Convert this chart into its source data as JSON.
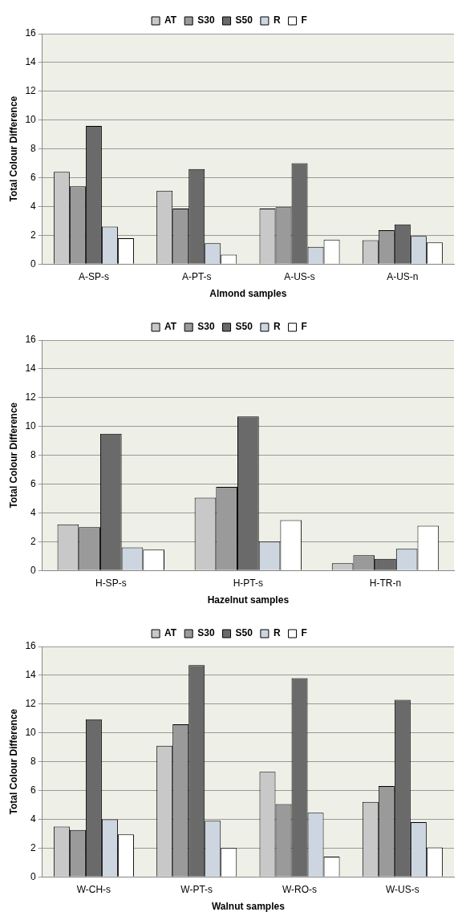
{
  "chart_data": [
    {
      "type": "bar",
      "xlabel": "Almond samples",
      "ylabel": "Total Colour Difference",
      "categories": [
        "A-SP-s",
        "A-PT-s",
        "A-US-s",
        "A-US-n"
      ],
      "ylim": [
        0,
        16
      ],
      "yticks": [
        0,
        2,
        4,
        6,
        8,
        10,
        12,
        14,
        16
      ],
      "grid": "y",
      "legend": "top",
      "series": [
        {
          "name": "AT",
          "color": "#c8c8c8",
          "values": [
            6.4,
            5.1,
            3.85,
            1.65
          ]
        },
        {
          "name": "S30",
          "color": "#9a9a9a",
          "values": [
            5.4,
            3.85,
            3.95,
            2.35
          ]
        },
        {
          "name": "S50",
          "color": "#6a6a6a",
          "values": [
            9.6,
            6.6,
            7.0,
            2.75
          ]
        },
        {
          "name": "R",
          "color": "#cdd6e0",
          "values": [
            2.6,
            1.45,
            1.2,
            1.95
          ]
        },
        {
          "name": "F",
          "color": "#ffffff",
          "values": [
            1.8,
            0.65,
            1.7,
            1.5
          ]
        }
      ]
    },
    {
      "type": "bar",
      "xlabel": "Hazelnut samples",
      "ylabel": "Total Colour Difference",
      "categories": [
        "H-SP-s",
        "H-PT-s",
        "H-TR-n"
      ],
      "ylim": [
        0,
        16
      ],
      "yticks": [
        0,
        2,
        4,
        6,
        8,
        10,
        12,
        14,
        16
      ],
      "grid": "y",
      "legend": "top",
      "series": [
        {
          "name": "AT",
          "color": "#c8c8c8",
          "values": [
            3.2,
            5.05,
            0.5
          ]
        },
        {
          "name": "S30",
          "color": "#9a9a9a",
          "values": [
            3.0,
            5.8,
            1.05
          ]
        },
        {
          "name": "S50",
          "color": "#6a6a6a",
          "values": [
            9.5,
            10.7,
            0.8
          ]
        },
        {
          "name": "R",
          "color": "#cdd6e0",
          "values": [
            1.6,
            2.0,
            1.5
          ]
        },
        {
          "name": "F",
          "color": "#ffffff",
          "values": [
            1.45,
            3.5,
            3.1
          ]
        }
      ]
    },
    {
      "type": "bar",
      "xlabel": "Walnut samples",
      "ylabel": "Total Colour Difference",
      "categories": [
        "W-CH-s",
        "W-PT-s",
        "W-RO-s",
        "W-US-s"
      ],
      "ylim": [
        0,
        16
      ],
      "yticks": [
        0,
        2,
        4,
        6,
        8,
        10,
        12,
        14,
        16
      ],
      "grid": "y",
      "legend": "top",
      "series": [
        {
          "name": "AT",
          "color": "#c8c8c8",
          "values": [
            3.5,
            9.1,
            7.3,
            5.2
          ]
        },
        {
          "name": "S30",
          "color": "#9a9a9a",
          "values": [
            3.25,
            10.6,
            5.05,
            6.3
          ]
        },
        {
          "name": "S50",
          "color": "#6a6a6a",
          "values": [
            10.95,
            14.7,
            13.8,
            12.3
          ]
        },
        {
          "name": "R",
          "color": "#cdd6e0",
          "values": [
            4.0,
            3.9,
            4.45,
            3.8
          ]
        },
        {
          "name": "F",
          "color": "#ffffff",
          "values": [
            2.95,
            2.0,
            1.4,
            2.05
          ]
        }
      ]
    }
  ]
}
